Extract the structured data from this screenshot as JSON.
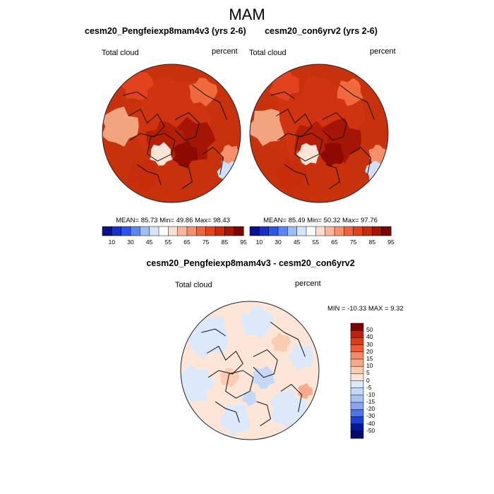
{
  "figure": {
    "season": "MAM"
  },
  "chart_data": [
    {
      "type": "heatmap",
      "projection": "north polar stereographic",
      "title": "cesm20_Pengfeiexp8mam4v3 (yrs 2-6)",
      "left_label": "Total cloud",
      "right_label": "percent",
      "stats": {
        "mean": 85.73,
        "min": 49.86,
        "max": 98.43
      },
      "stats_text": "MEAN=  85.73  Min=  49.86  Max=  98.43",
      "colorbar": {
        "orientation": "horizontal",
        "ticks": [
          "10",
          "30",
          "45",
          "55",
          "65",
          "75",
          "85",
          "95"
        ],
        "colors": [
          "#0a0f8c",
          "#1a2fc8",
          "#2c56e6",
          "#5b86f1",
          "#9ebef7",
          "#d5e6fb",
          "#ffffff",
          "#fde0d0",
          "#f9b79a",
          "#f58f6c",
          "#ee6340",
          "#e2431e",
          "#c72d0a",
          "#a51505",
          "#7a0500"
        ]
      }
    },
    {
      "type": "heatmap",
      "projection": "north polar stereographic",
      "title": "cesm20_con6yrv2 (yrs 2-6)",
      "left_label": "Total cloud",
      "right_label": "percent",
      "stats": {
        "mean": 85.49,
        "min": 50.32,
        "max": 97.76
      },
      "stats_text": "MEAN=  85.49  Min=  50.32  Max=  97.76",
      "colorbar": {
        "orientation": "horizontal",
        "ticks": [
          "10",
          "30",
          "45",
          "55",
          "65",
          "75",
          "85",
          "95"
        ],
        "colors": [
          "#0a0f8c",
          "#1a2fc8",
          "#2c56e6",
          "#5b86f1",
          "#9ebef7",
          "#d5e6fb",
          "#ffffff",
          "#fde0d0",
          "#f9b79a",
          "#f58f6c",
          "#ee6340",
          "#e2431e",
          "#c72d0a",
          "#a51505",
          "#7a0500"
        ]
      }
    },
    {
      "type": "heatmap",
      "projection": "north polar stereographic",
      "title": "cesm20_Pengfeiexp8mam4v3 - cesm20_con6yrv2",
      "left_label": "Total cloud",
      "right_label": "percent",
      "stats": {
        "min": -10.33,
        "max": 9.32
      },
      "stats_text": "MIN = -10.33 MAX =   9.32",
      "colorbar": {
        "orientation": "vertical",
        "ticks": [
          "50",
          "40",
          "30",
          "20",
          "15",
          "10",
          "5",
          "0",
          "-5",
          "-10",
          "-15",
          "-20",
          "-30",
          "-40",
          "-50"
        ],
        "colors": [
          "#7a0500",
          "#c1200c",
          "#e03a12",
          "#f05a2e",
          "#f58a66",
          "#f8ab8a",
          "#fbcbb2",
          "#fde6d8",
          "#dce9fb",
          "#c5d8f8",
          "#a8c2f5",
          "#86a6f1",
          "#4e73ec",
          "#1a3ee0",
          "#00189e",
          "#000b6a"
        ]
      }
    }
  ]
}
